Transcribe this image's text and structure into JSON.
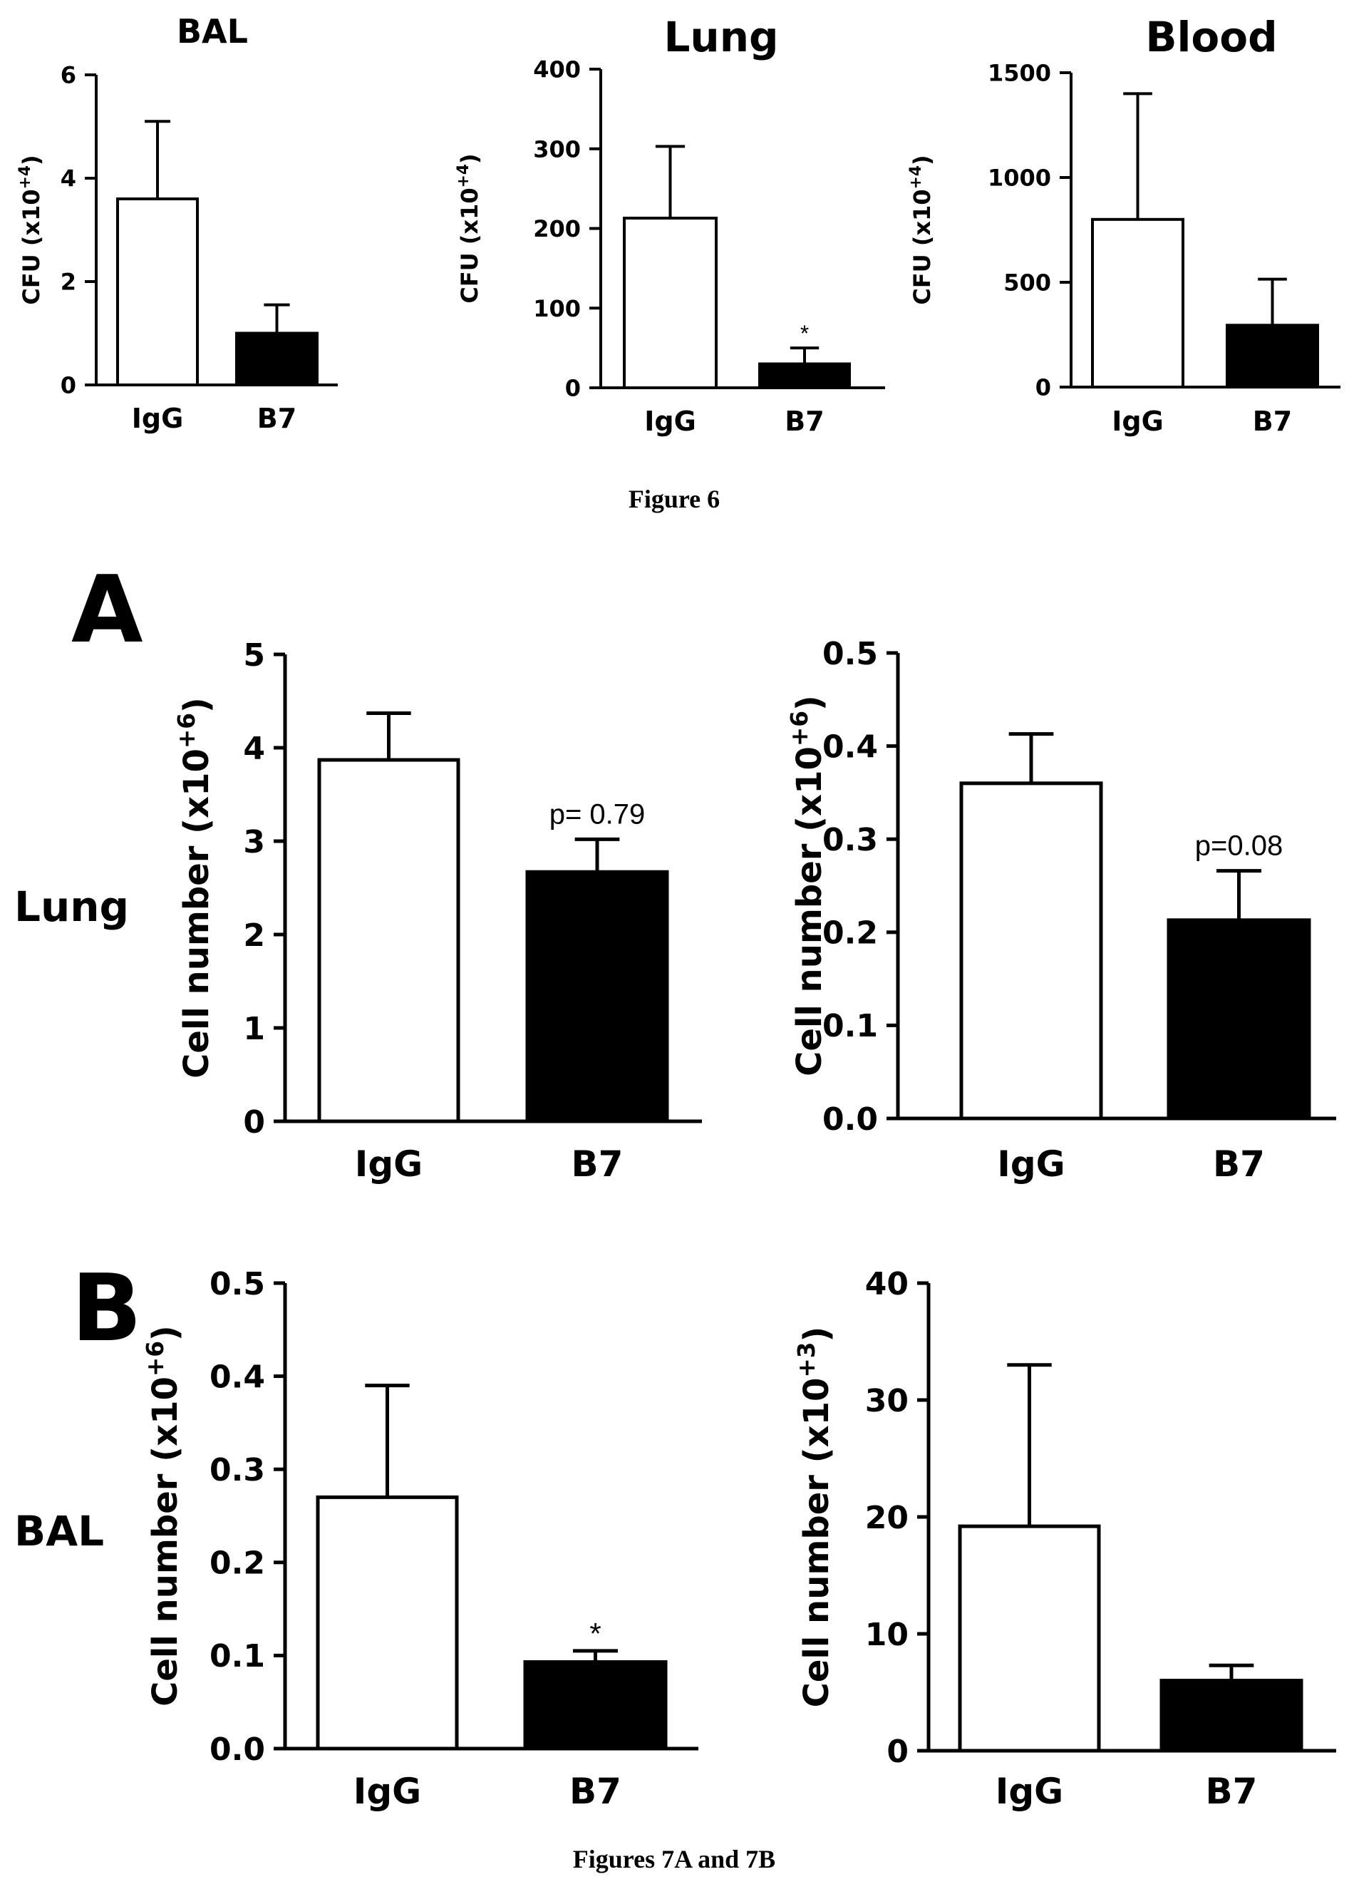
{
  "figure6": {
    "caption": "Figure 6"
  },
  "figure7": {
    "caption": "Figures 7A and 7B",
    "panel_a_letter": "A",
    "panel_b_letter": "B",
    "row_a_label": "Lung",
    "row_b_label": "BAL"
  },
  "chart_data": [
    {
      "id": "f6-bal",
      "type": "bar",
      "title": "BAL",
      "ylabel_base": "CFU (x10",
      "ylabel_exp": "+4",
      "ylabel_end": ")",
      "categories": [
        "IgG",
        "B7"
      ],
      "values": [
        3.6,
        1.0
      ],
      "errors": [
        1.5,
        0.55
      ],
      "fills": [
        "#ffffff",
        "#000000"
      ],
      "ylim": [
        0,
        6
      ],
      "yticks": [
        0,
        2,
        4,
        6
      ],
      "ytick_labels": [
        "0",
        "2",
        "4",
        "6"
      ],
      "annotations": [
        "",
        ""
      ]
    },
    {
      "id": "f6-lung",
      "type": "bar",
      "title": "Lung",
      "ylabel_base": "CFU (x10",
      "ylabel_exp": "+4",
      "ylabel_end": ")",
      "categories": [
        "IgG",
        "B7"
      ],
      "values": [
        213,
        30
      ],
      "errors": [
        90,
        20
      ],
      "fills": [
        "#ffffff",
        "#000000"
      ],
      "ylim": [
        0,
        400
      ],
      "yticks": [
        0,
        100,
        200,
        300,
        400
      ],
      "ytick_labels": [
        "0",
        "100",
        "200",
        "300",
        "400"
      ],
      "annotations": [
        "",
        "*"
      ]
    },
    {
      "id": "f6-blood",
      "type": "bar",
      "title": "Blood",
      "ylabel_base": "CFU (x10",
      "ylabel_exp": "+4",
      "ylabel_end": ")",
      "categories": [
        "IgG",
        "B7"
      ],
      "values": [
        800,
        295
      ],
      "errors": [
        600,
        220
      ],
      "fills": [
        "#ffffff",
        "#000000"
      ],
      "ylim": [
        0,
        1500
      ],
      "yticks": [
        0,
        500,
        1000,
        1500
      ],
      "ytick_labels": [
        "0",
        "500",
        "1000",
        "1500"
      ],
      "annotations": [
        "",
        ""
      ]
    },
    {
      "id": "f7a-left",
      "type": "bar",
      "title": "",
      "ylabel_base": "Cell number (x10",
      "ylabel_exp": "+6",
      "ylabel_end": ")",
      "categories": [
        "IgG",
        "B7"
      ],
      "values": [
        3.87,
        2.67
      ],
      "errors": [
        0.5,
        0.35
      ],
      "fills": [
        "#ffffff",
        "#000000"
      ],
      "ylim": [
        0,
        5
      ],
      "yticks": [
        0,
        1,
        2,
        3,
        4,
        5
      ],
      "ytick_labels": [
        "0",
        "1",
        "2",
        "3",
        "4",
        "5"
      ],
      "annotations": [
        "",
        "p= 0.79"
      ]
    },
    {
      "id": "f7a-right",
      "type": "bar",
      "title": "",
      "ylabel_base": "Cell number (x10",
      "ylabel_exp": "+6",
      "ylabel_end": ")",
      "categories": [
        "IgG",
        "B7"
      ],
      "values": [
        0.36,
        0.213
      ],
      "errors": [
        0.053,
        0.053
      ],
      "fills": [
        "#ffffff",
        "#000000"
      ],
      "ylim": [
        0,
        0.5
      ],
      "yticks": [
        0,
        0.1,
        0.2,
        0.3,
        0.4,
        0.5
      ],
      "ytick_labels": [
        "0.0",
        "0.1",
        "0.2",
        "0.3",
        "0.4",
        "0.5"
      ],
      "annotations": [
        "",
        "p=0.08"
      ]
    },
    {
      "id": "f7b-left",
      "type": "bar",
      "title": "",
      "ylabel_base": "Cell number (x10",
      "ylabel_exp": "+6",
      "ylabel_end": ")",
      "categories": [
        "IgG",
        "B7"
      ],
      "values": [
        0.27,
        0.093
      ],
      "errors": [
        0.12,
        0.012
      ],
      "fills": [
        "#ffffff",
        "#000000"
      ],
      "ylim": [
        0,
        0.5
      ],
      "yticks": [
        0,
        0.1,
        0.2,
        0.3,
        0.4,
        0.5
      ],
      "ytick_labels": [
        "0.0",
        "0.1",
        "0.2",
        "0.3",
        "0.4",
        "0.5"
      ],
      "annotations": [
        "",
        "*"
      ]
    },
    {
      "id": "f7b-right",
      "type": "bar",
      "title": "",
      "ylabel_base": "Cell number (x10",
      "ylabel_exp": "+3",
      "ylabel_end": ")",
      "categories": [
        "IgG",
        "B7"
      ],
      "values": [
        19.2,
        6.0
      ],
      "errors": [
        13.8,
        1.3
      ],
      "fills": [
        "#ffffff",
        "#000000"
      ],
      "ylim": [
        0,
        40
      ],
      "yticks": [
        0,
        10,
        20,
        30,
        40
      ],
      "ytick_labels": [
        "0",
        "10",
        "20",
        "30",
        "40"
      ],
      "annotations": [
        "",
        ""
      ]
    }
  ]
}
